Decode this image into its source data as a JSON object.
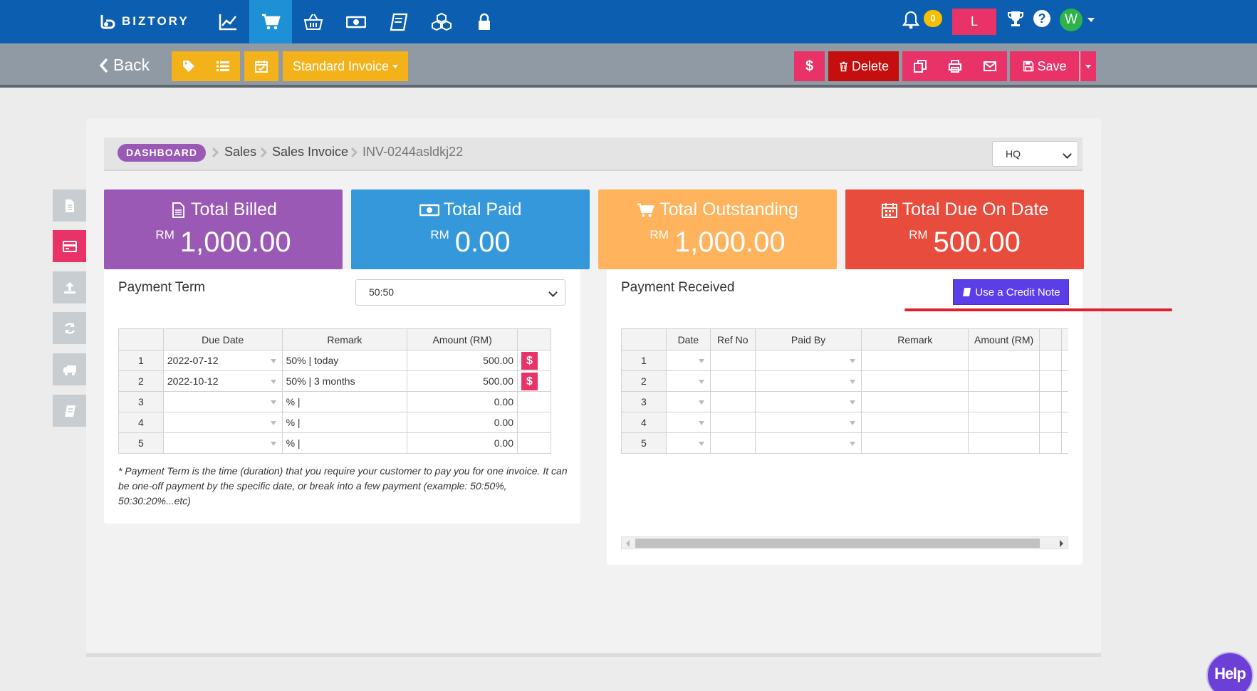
{
  "app": {
    "logo_text": "BIZTORY"
  },
  "topnav": {
    "icons": [
      "chart-line-icon",
      "cart-icon",
      "basket-icon",
      "money-icon",
      "book-icon",
      "cubes-icon",
      "lock-icon"
    ],
    "active_index": 1,
    "notification_count": "0",
    "user_initial_box": "L",
    "avatar_initial": "W"
  },
  "toolbar": {
    "back_label": "Back",
    "invoice_type_label": "Standard Invoice",
    "delete_label": "Delete",
    "save_label": "Save",
    "payment_symbol": "$"
  },
  "breadcrumb": {
    "dashboard": "DASHBOARD",
    "sales": "Sales",
    "sales_invoice": "Sales Invoice",
    "invoice_no": "INV-0244asldkj22"
  },
  "branch_select": {
    "value": "HQ"
  },
  "summary": [
    {
      "title": "Total Billed",
      "currency": "RM",
      "value": "1,000.00",
      "color": "#9b59b6",
      "icon": "file-icon"
    },
    {
      "title": "Total Paid",
      "currency": "RM",
      "value": "0.00",
      "color": "#3498db",
      "icon": "money-icon"
    },
    {
      "title": "Total Outstanding",
      "currency": "RM",
      "value": "1,000.00",
      "color": "#ffb35c",
      "icon": "cart-icon"
    },
    {
      "title": "Total Due On Date",
      "currency": "RM",
      "value": "500.00",
      "color": "#e74c3c",
      "icon": "calendar-icon"
    }
  ],
  "payment_term": {
    "title": "Payment Term",
    "select_value": "50:50",
    "columns": [
      "Due Date",
      "Remark",
      "Amount (RM)"
    ],
    "rows": [
      {
        "n": "1",
        "date": "2022-07-12",
        "remark": "50% |  today",
        "amount": "500.00",
        "pay": "$"
      },
      {
        "n": "2",
        "date": "2022-10-12",
        "remark": "50% | 3 months",
        "amount": "500.00",
        "pay": "$"
      },
      {
        "n": "3",
        "date": "",
        "remark": "% |",
        "amount": "0.00",
        "pay": ""
      },
      {
        "n": "4",
        "date": "",
        "remark": "% |",
        "amount": "0.00",
        "pay": ""
      },
      {
        "n": "5",
        "date": "",
        "remark": "% |",
        "amount": "0.00",
        "pay": ""
      }
    ],
    "note": "* Payment Term is the time (duration) that you require your customer to pay you for one invoice. It can be one-off payment by the specific date, or break into a few payment (example: 50:50%, 50:30:20%...etc)"
  },
  "payment_received": {
    "title": "Payment Received",
    "credit_note_label": "Use a Credit Note",
    "columns": [
      "Date",
      "Ref No",
      "Paid By",
      "Remark",
      "Amount (RM)"
    ],
    "rows": [
      "1",
      "2",
      "3",
      "4",
      "5"
    ]
  },
  "help_bubble": "Help"
}
